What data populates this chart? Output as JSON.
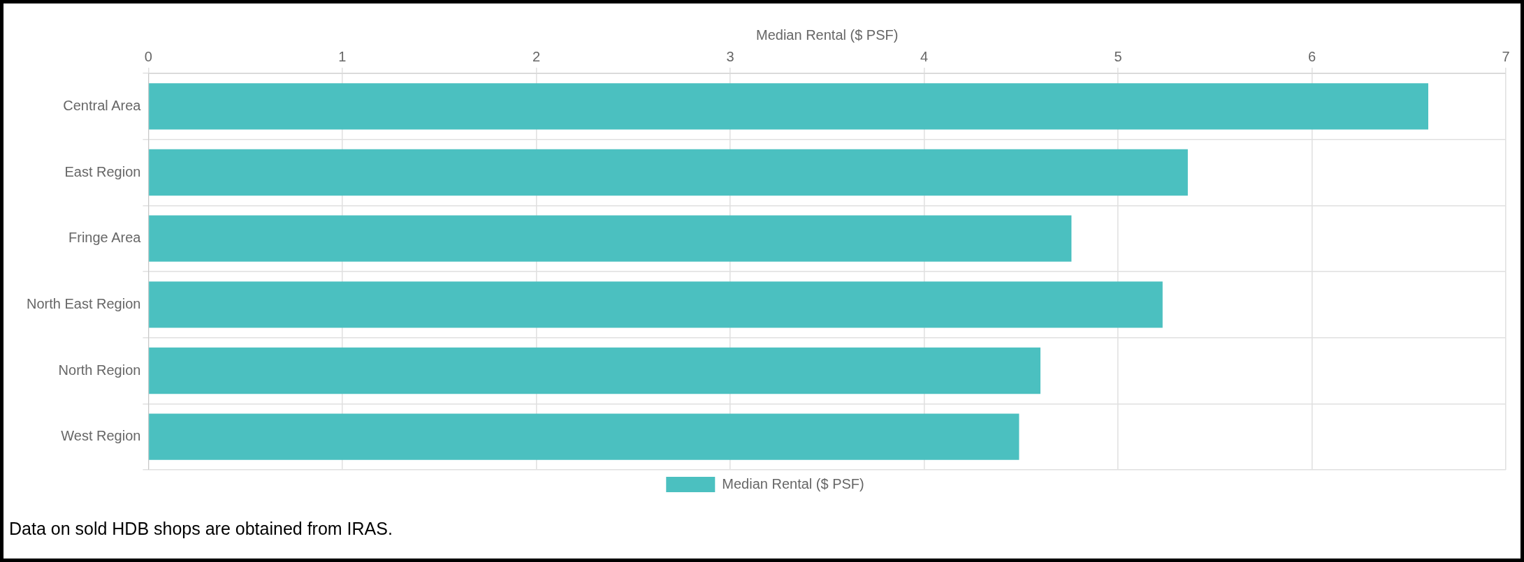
{
  "chart_data": {
    "type": "bar",
    "orientation": "horizontal",
    "xlabel": "Median Rental ($ PSF)",
    "categories": [
      "Central Area",
      "East Region",
      "Fringe Area",
      "North East Region",
      "North Region",
      "West Region"
    ],
    "series": [
      {
        "name": "Median Rental ($ PSF)",
        "color": "#4bc0c0",
        "values": [
          6.6,
          5.36,
          4.76,
          5.23,
          4.6,
          4.49
        ]
      }
    ],
    "xlim": [
      0,
      7
    ],
    "xticks": [
      0,
      1,
      2,
      3,
      4,
      5,
      6,
      7
    ],
    "grid": true,
    "legend": "bottom",
    "annotations": [
      "Data on sold HDB shops are obtained from IRAS."
    ]
  }
}
